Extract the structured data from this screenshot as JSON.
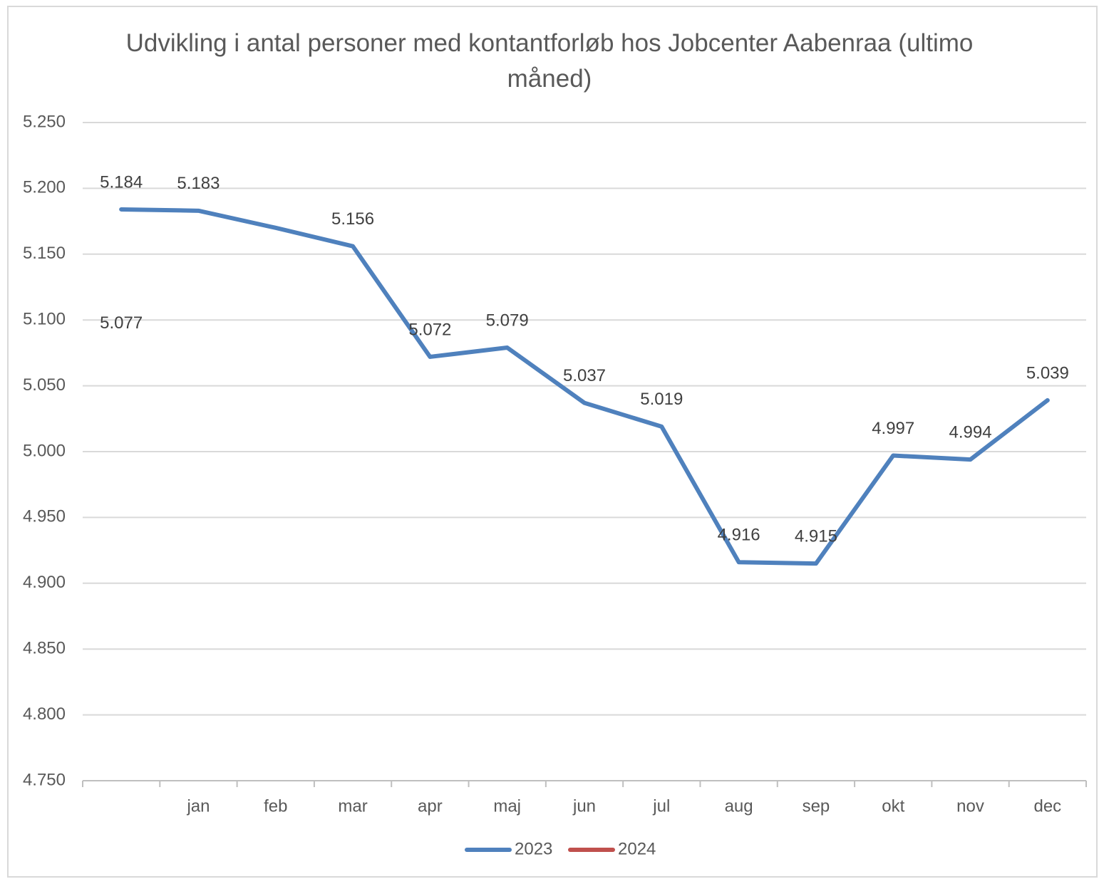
{
  "chart_data": {
    "type": "line",
    "title": "Udvikling i antal personer med kontantforløb hos Jobcenter Aabenraa (ultimo måned)",
    "categories": [
      null,
      "jan",
      "feb",
      "mar",
      "apr",
      "maj",
      "jun",
      "jul",
      "aug",
      "sep",
      "okt",
      "nov",
      "dec"
    ],
    "series": [
      {
        "name": "2023",
        "color": "#4f81bd",
        "values": [
          5184,
          5183,
          5170,
          5156,
          5072,
          5079,
          5037,
          5019,
          4916,
          4915,
          4997,
          4994,
          5039
        ],
        "value_labels": [
          "5.184",
          "5.183",
          null,
          "5.156",
          "5.072",
          "5.079",
          "5.037",
          "5.019",
          "4.916",
          "4.915",
          "4.997",
          "4.994",
          "5.039"
        ]
      },
      {
        "name": "2024",
        "color": "#c0504d",
        "values": [
          5077,
          null,
          null,
          null,
          null,
          null,
          null,
          null,
          null,
          null,
          null,
          null,
          null
        ],
        "value_labels": [
          "5.077",
          null,
          null,
          null,
          null,
          null,
          null,
          null,
          null,
          null,
          null,
          null,
          null
        ]
      }
    ],
    "ylim": [
      4750,
      5250
    ],
    "yticks": [
      {
        "value": 4750,
        "label": "4.750"
      },
      {
        "value": 4800,
        "label": "4.800"
      },
      {
        "value": 4850,
        "label": "4.850"
      },
      {
        "value": 4900,
        "label": "4.900"
      },
      {
        "value": 4950,
        "label": "4.950"
      },
      {
        "value": 5000,
        "label": "5.000"
      },
      {
        "value": 5050,
        "label": "5.050"
      },
      {
        "value": 5100,
        "label": "5.100"
      },
      {
        "value": 5150,
        "label": "5.150"
      },
      {
        "value": 5200,
        "label": "5.200"
      },
      {
        "value": 5250,
        "label": "5.250"
      }
    ],
    "grid": true,
    "legend": "bottom"
  }
}
